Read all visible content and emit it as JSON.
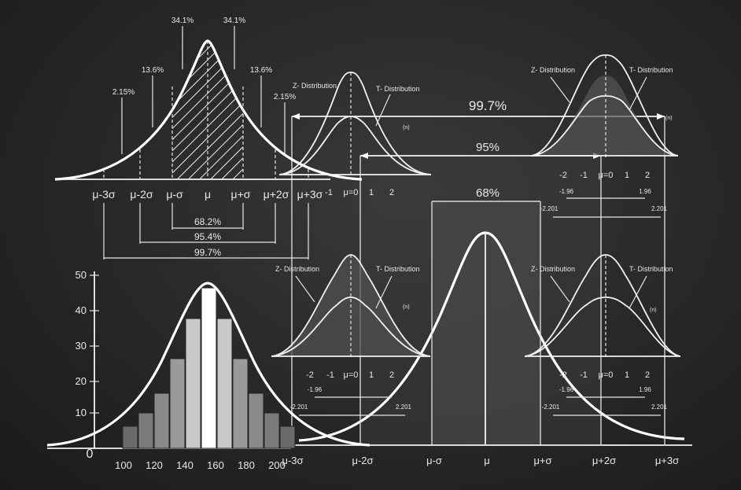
{
  "top_left_curve": {
    "percent_labels": [
      "34.1%",
      "34.1%",
      "13.6%",
      "13.6%",
      "2.15%",
      "2.15%"
    ],
    "sigma_labels": [
      "μ-3σ",
      "μ-2σ",
      "μ-σ",
      "μ",
      "μ+σ",
      "μ+2σ",
      "μ+3σ"
    ],
    "ranges": [
      "68.2%",
      "95.4%",
      "99.7%"
    ]
  },
  "z_t_panels": {
    "z_label": "Z- Distribution",
    "t_label": "T- Distribution",
    "n_label": "(n)",
    "ticks": [
      "-2",
      "-1",
      "μ=0",
      "1",
      "2"
    ],
    "z_critical": [
      "-1.96",
      "1.96"
    ],
    "t_critical": [
      "-2.201",
      "2.201"
    ]
  },
  "big_curve": {
    "ranges": [
      "99.7%",
      "95%",
      "68%"
    ],
    "axis_labels": [
      "μ-3σ",
      "μ-2σ",
      "μ-σ",
      "μ",
      "μ+σ",
      "μ+2σ",
      "μ+3σ"
    ]
  },
  "histogram": {
    "y_ticks": [
      "50",
      "40",
      "30",
      "20",
      "10",
      "0"
    ],
    "x_ticks": [
      "100",
      "120",
      "140",
      "160",
      "180",
      "200"
    ]
  },
  "colors": {
    "background": "#2a2a2a",
    "chalk": "#ffffff"
  }
}
